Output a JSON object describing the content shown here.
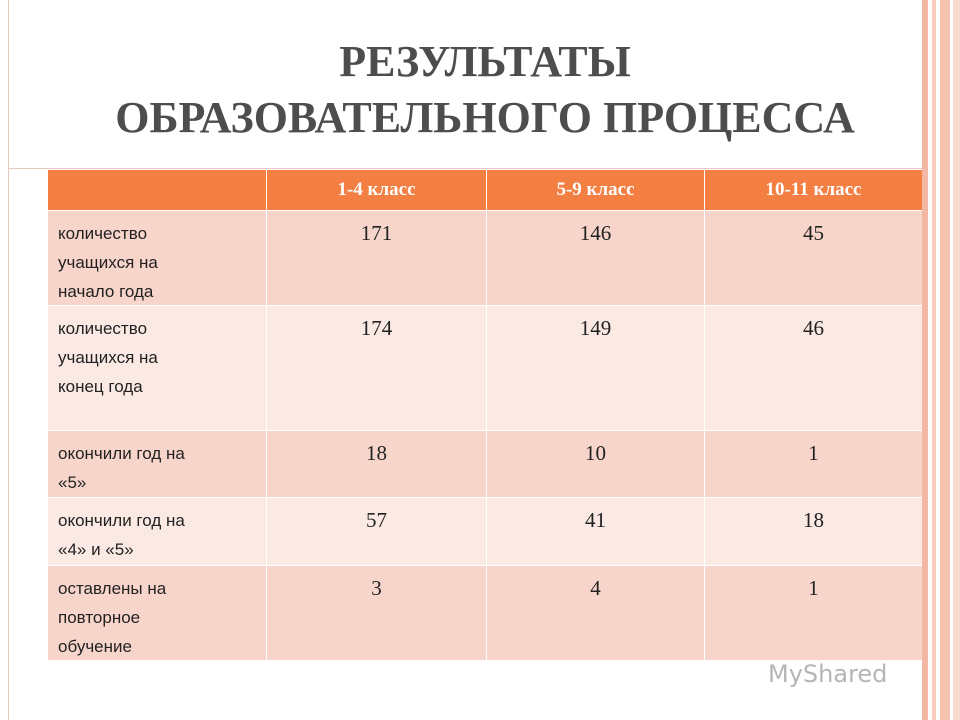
{
  "header": {
    "title": [
      "РЕЗУЛЬТАТЫ",
      "ОБРАЗОВАТЕЛЬНОГО ПРОЦЕССА"
    ]
  },
  "table": {
    "columns": [
      "1-4 класс",
      "5-9 класс",
      "10-11 класс"
    ],
    "rows": [
      {
        "label": [
          "количество",
          "учащихся на",
          "начало года"
        ],
        "values": [
          171,
          146,
          45
        ]
      },
      {
        "label": [
          "количество",
          "учащихся на",
          "конец года"
        ],
        "values": [
          174,
          149,
          46
        ]
      },
      {
        "label": [
          "окончили год на",
          "«5»"
        ],
        "values": [
          18,
          10,
          1
        ]
      },
      {
        "label": [
          "окончили год на",
          "«4» и «5»"
        ],
        "values": [
          57,
          41,
          18
        ]
      },
      {
        "label": [
          "оставлены на",
          "повторное",
          "обучение"
        ],
        "values": [
          3,
          4,
          1
        ]
      }
    ]
  },
  "watermark": "MyShared"
}
